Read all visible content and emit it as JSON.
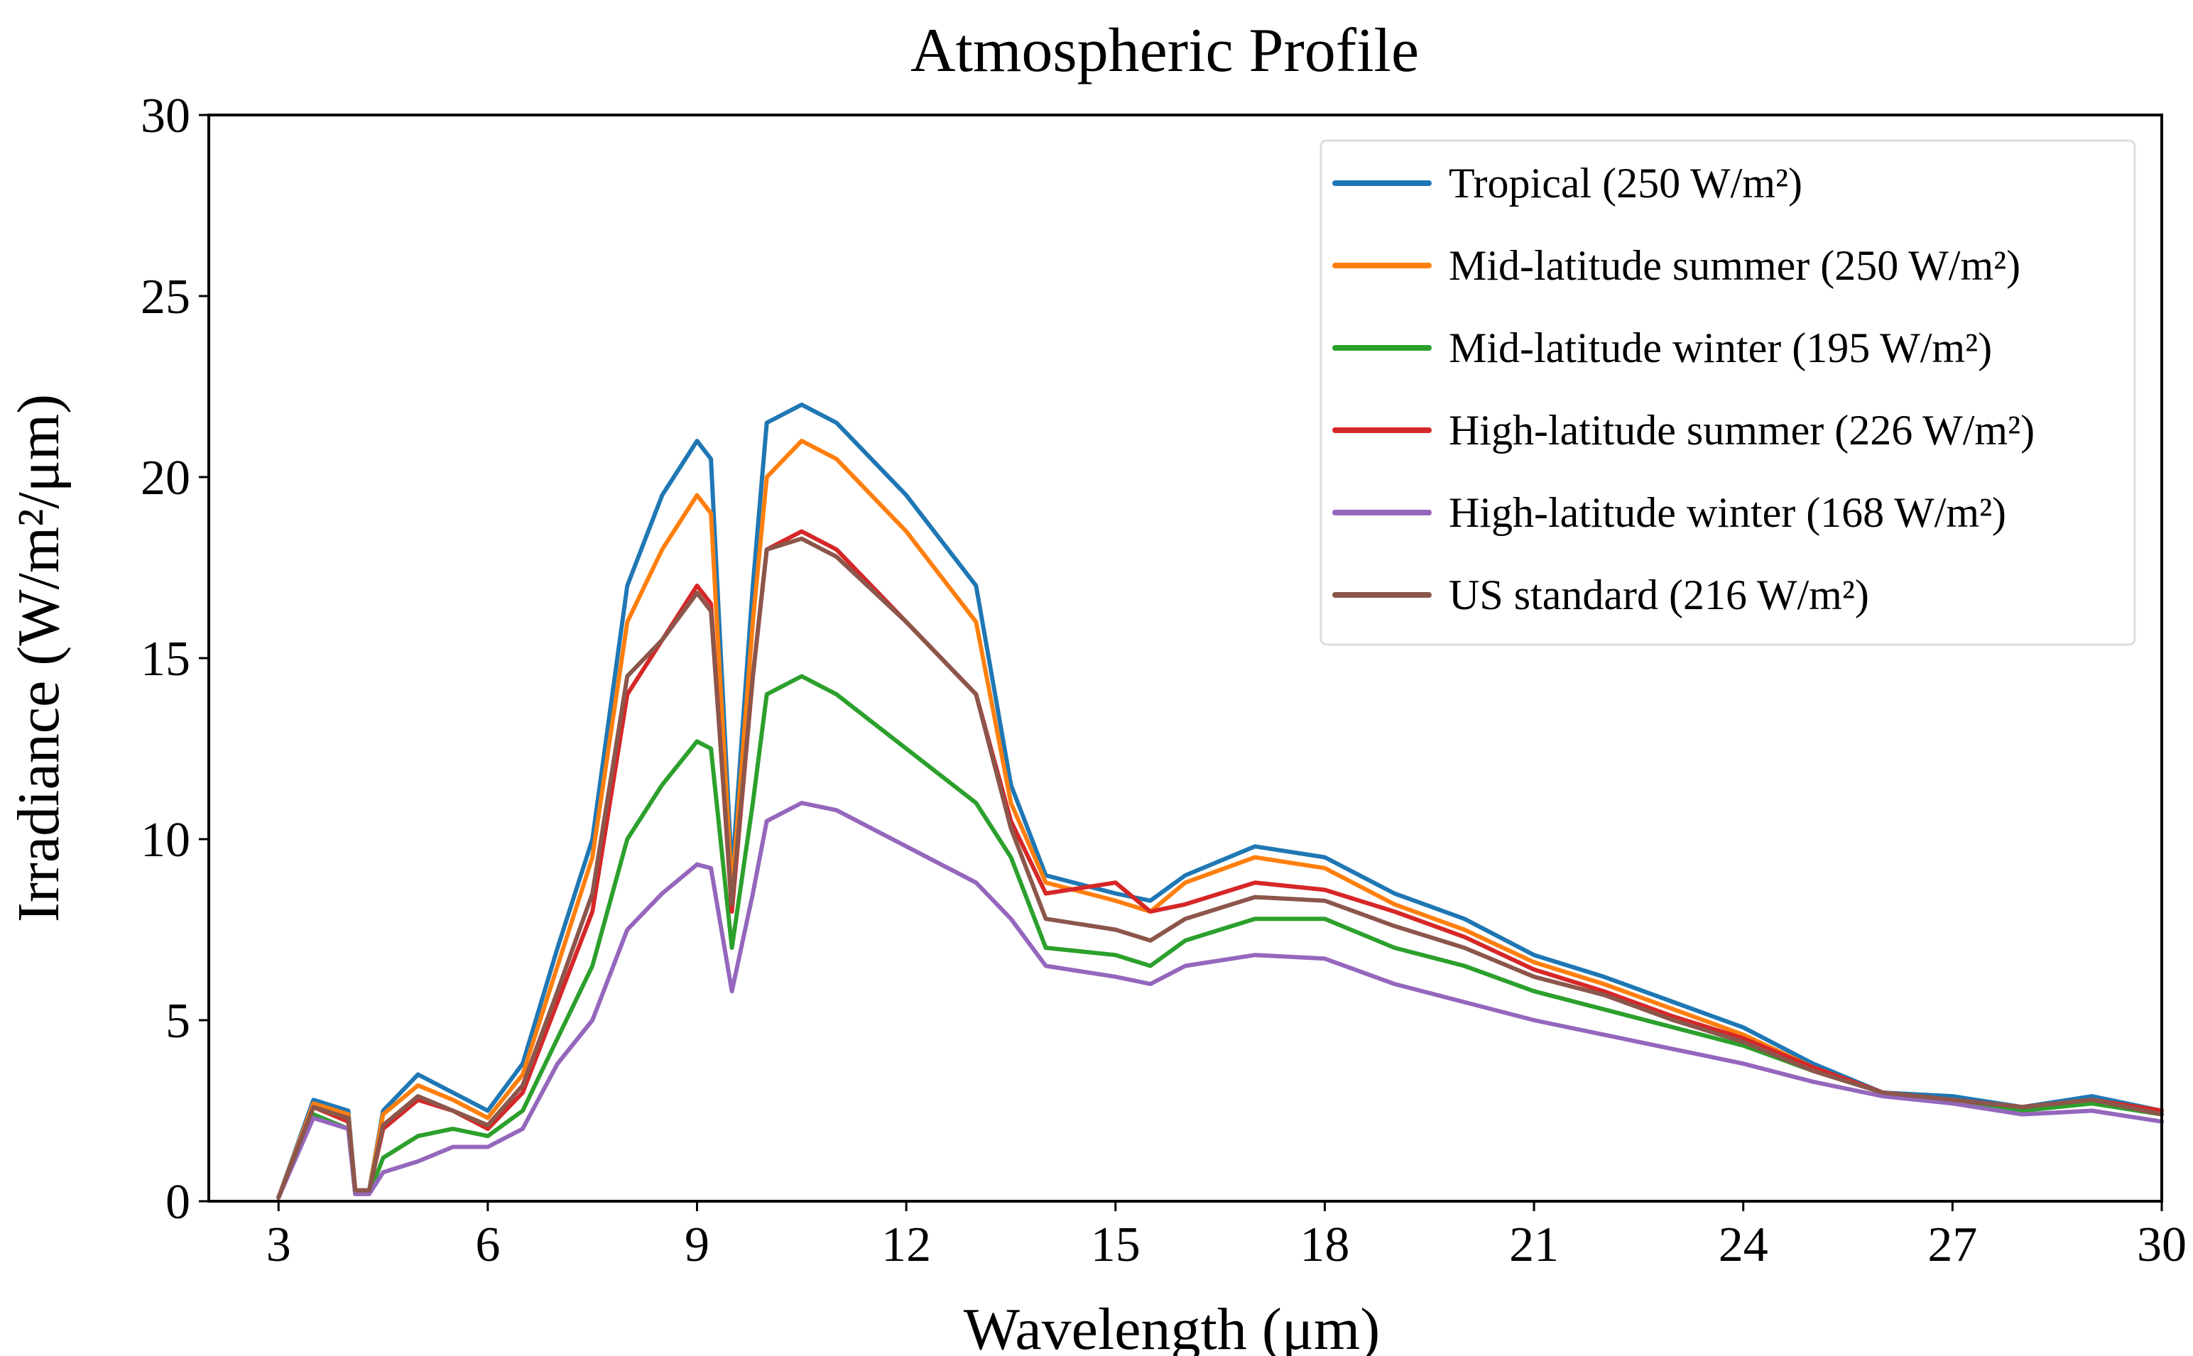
{
  "chart_data": {
    "type": "line",
    "title": "Atmospheric Profile",
    "xlabel": "Wavelength (μm)",
    "ylabel": "Irradiance (W/m²/μm)",
    "xlim": [
      2,
      30
    ],
    "ylim": [
      0,
      30
    ],
    "x_ticks": [
      "3",
      "6",
      "9",
      "12",
      "15",
      "18",
      "21",
      "24",
      "27",
      "30"
    ],
    "y_ticks": [
      "0",
      "5",
      "10",
      "15",
      "20",
      "25",
      "30"
    ],
    "legend_position": "top-right",
    "grid": false,
    "x": [
      3.0,
      3.5,
      4.0,
      4.1,
      4.3,
      4.5,
      5.0,
      5.5,
      6.0,
      6.5,
      7.0,
      7.5,
      8.0,
      8.5,
      9.0,
      9.2,
      9.5,
      9.8,
      10.0,
      10.5,
      11.0,
      12.0,
      13.0,
      13.5,
      14.0,
      15.0,
      15.5,
      16.0,
      17.0,
      18.0,
      19.0,
      20.0,
      21.0,
      22.0,
      23.0,
      24.0,
      25.0,
      26.0,
      27.0,
      28.0,
      29.0,
      30.0
    ],
    "series": [
      {
        "name": "Tropical (250 W/m²)",
        "color": "#1f77b4",
        "values": [
          0.1,
          2.8,
          2.5,
          0.3,
          0.3,
          2.5,
          3.5,
          3.0,
          2.5,
          3.8,
          7.0,
          10.0,
          17.0,
          19.5,
          21.0,
          20.5,
          9.0,
          17.0,
          21.5,
          22.0,
          21.5,
          19.5,
          17.0,
          11.5,
          9.0,
          8.5,
          8.3,
          9.0,
          9.8,
          9.5,
          8.5,
          7.8,
          6.8,
          6.2,
          5.5,
          4.8,
          3.8,
          3.0,
          2.9,
          2.6,
          2.9,
          2.5
        ]
      },
      {
        "name": "Mid-latitude summer (250 W/m²)",
        "color": "#ff7f0e",
        "values": [
          0.1,
          2.7,
          2.4,
          0.3,
          0.3,
          2.4,
          3.2,
          2.8,
          2.3,
          3.5,
          6.5,
          9.5,
          16.0,
          18.0,
          19.5,
          19.0,
          8.5,
          16.0,
          20.0,
          21.0,
          20.5,
          18.5,
          16.0,
          11.0,
          8.8,
          8.3,
          8.0,
          8.8,
          9.5,
          9.2,
          8.2,
          7.5,
          6.6,
          6.0,
          5.3,
          4.6,
          3.7,
          3.0,
          2.8,
          2.6,
          2.8,
          2.5
        ]
      },
      {
        "name": "Mid-latitude winter (195 W/m²)",
        "color": "#2ca02c",
        "values": [
          0.1,
          2.4,
          2.0,
          0.2,
          0.2,
          1.2,
          1.8,
          2.0,
          1.8,
          2.5,
          4.5,
          6.5,
          10.0,
          11.5,
          12.7,
          12.5,
          7.0,
          11.0,
          14.0,
          14.5,
          14.0,
          12.5,
          11.0,
          9.5,
          7.0,
          6.8,
          6.5,
          7.2,
          7.8,
          7.8,
          7.0,
          6.5,
          5.8,
          5.3,
          4.8,
          4.3,
          3.6,
          3.0,
          2.8,
          2.5,
          2.7,
          2.4
        ]
      },
      {
        "name": "High-latitude summer (226 W/m²)",
        "color": "#d62728",
        "values": [
          0.1,
          2.6,
          2.2,
          0.3,
          0.3,
          2.0,
          2.8,
          2.5,
          2.0,
          3.0,
          5.5,
          8.0,
          14.0,
          15.5,
          17.0,
          16.5,
          8.0,
          14.5,
          18.0,
          18.5,
          18.0,
          16.0,
          14.0,
          10.5,
          8.5,
          8.8,
          8.0,
          8.2,
          8.8,
          8.6,
          8.0,
          7.3,
          6.4,
          5.8,
          5.1,
          4.5,
          3.7,
          3.0,
          2.8,
          2.6,
          2.8,
          2.5
        ]
      },
      {
        "name": "High-latitude winter (168 W/m²)",
        "color": "#9467bd",
        "values": [
          0.1,
          2.3,
          2.0,
          0.2,
          0.2,
          0.8,
          1.1,
          1.5,
          1.5,
          2.0,
          3.8,
          5.0,
          7.5,
          8.5,
          9.3,
          9.2,
          5.8,
          8.5,
          10.5,
          11.0,
          10.8,
          9.8,
          8.8,
          7.8,
          6.5,
          6.2,
          6.0,
          6.5,
          6.8,
          6.7,
          6.0,
          5.5,
          5.0,
          4.6,
          4.2,
          3.8,
          3.3,
          2.9,
          2.7,
          2.4,
          2.5,
          2.2
        ]
      },
      {
        "name": "US standard (216 W/m²)",
        "color": "#8c564b",
        "values": [
          0.1,
          2.6,
          2.3,
          0.3,
          0.3,
          2.1,
          2.9,
          2.5,
          2.1,
          3.2,
          5.8,
          8.5,
          14.5,
          15.5,
          16.8,
          16.3,
          8.2,
          14.5,
          18.0,
          18.3,
          17.8,
          16.0,
          14.0,
          10.3,
          7.8,
          7.5,
          7.2,
          7.8,
          8.4,
          8.3,
          7.6,
          7.0,
          6.2,
          5.7,
          5.0,
          4.4,
          3.6,
          3.0,
          2.8,
          2.6,
          2.8,
          2.4
        ]
      }
    ]
  }
}
